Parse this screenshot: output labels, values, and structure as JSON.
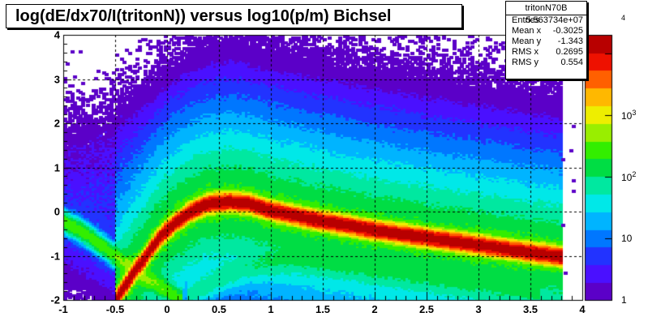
{
  "title": "log(dE/dx70/I(tritonN)) versus log10(p/m) Bichsel",
  "stats": {
    "name": "tritonN70B",
    "rows": [
      {
        "label": "Entries",
        "value": "5.563734e+07"
      },
      {
        "label": "Mean x",
        "value": "-0.3025"
      },
      {
        "label": "Mean y",
        "value": "-1.343"
      },
      {
        "label": "RMS x",
        "value": "0.2695"
      },
      {
        "label": "RMS y",
        "value": "0.554"
      }
    ]
  },
  "chart_data": {
    "type": "heatmap",
    "xlim": [
      -1,
      4
    ],
    "ylim": [
      -2,
      4
    ],
    "x_ticks": [
      "-1",
      "-0.5",
      "0",
      "0.5",
      "1",
      "1.5",
      "2",
      "2.5",
      "3",
      "3.5",
      "4"
    ],
    "y_ticks": [
      "-2",
      "-1",
      "0",
      "1",
      "2",
      "3",
      "4"
    ],
    "z_scale": "log",
    "z_range": [
      1,
      20000
    ],
    "z_ticks": [
      {
        "base": "1",
        "exp": ""
      },
      {
        "base": "10",
        "exp": ""
      },
      {
        "base": "10",
        "exp": "2"
      },
      {
        "base": "10",
        "exp": "3"
      },
      {
        "base": "",
        "exp": "4"
      }
    ],
    "grid": true,
    "colormap": [
      "#5b00c8",
      "#4a10ff",
      "#2233ff",
      "#0077ff",
      "#00b4ff",
      "#00e8e8",
      "#00e8a0",
      "#00dd44",
      "#33ee00",
      "#99ee00",
      "#eeee00",
      "#ffb800",
      "#ff6000",
      "#ee1100",
      "#b80000"
    ],
    "bands": [
      {
        "desc": "main triton band",
        "points": [
          [
            -0.5,
            -2.0
          ],
          [
            -0.4,
            -1.65
          ],
          [
            -0.3,
            -1.3
          ],
          [
            -0.2,
            -1.0
          ],
          [
            -0.1,
            -0.65
          ],
          [
            0.0,
            -0.4
          ],
          [
            0.1,
            -0.2
          ],
          [
            0.25,
            0.05
          ],
          [
            0.4,
            0.2
          ],
          [
            0.6,
            0.25
          ],
          [
            0.8,
            0.2
          ],
          [
            1.0,
            0.05
          ],
          [
            1.4,
            -0.15
          ],
          [
            2.0,
            -0.4
          ],
          [
            2.6,
            -0.6
          ],
          [
            3.2,
            -0.8
          ],
          [
            3.8,
            -1.0
          ]
        ],
        "peak": 18000,
        "width": 0.09
      },
      {
        "desc": "secondary lower band",
        "points": [
          [
            -1.0,
            -0.2
          ],
          [
            -0.8,
            -0.45
          ],
          [
            -0.6,
            -0.8
          ],
          [
            -0.4,
            -1.15
          ],
          [
            -0.2,
            -1.5
          ],
          [
            0.0,
            -1.75
          ],
          [
            0.15,
            -2.0
          ]
        ],
        "peak": 300,
        "width": 0.12
      },
      {
        "desc": "lower right band",
        "points": [
          [
            0.2,
            -1.9
          ],
          [
            0.5,
            -1.5
          ],
          [
            0.8,
            -1.2
          ],
          [
            1.2,
            -1.05
          ],
          [
            1.8,
            -1.2
          ],
          [
            2.4,
            -1.4
          ],
          [
            3.0,
            -1.6
          ],
          [
            3.6,
            -1.8
          ]
        ],
        "peak": 60,
        "width": 0.18
      }
    ],
    "diffuse_region": {
      "x": [
        -1,
        4
      ],
      "y": [
        -2,
        3.2
      ],
      "level": 6
    }
  }
}
